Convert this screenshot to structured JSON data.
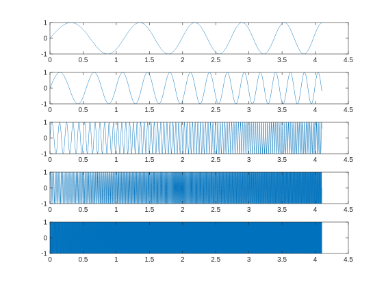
{
  "chart_data": [
    {
      "type": "line",
      "title": "",
      "xlabel": "",
      "ylabel": "",
      "xlim": [
        0,
        4.5
      ],
      "ylim": [
        -1,
        1
      ],
      "xticks": [
        "0",
        "0.5",
        "1",
        "1.5",
        "2",
        "2.5",
        "3",
        "3.5",
        "4",
        "4.5"
      ],
      "yticks": [
        "1",
        "0",
        "-1"
      ],
      "series": [
        {
          "function": "sin",
          "frequency_start_hz": 0.75,
          "frequency_end_hz": 1.8,
          "x_start": 0,
          "x_end": 4.1
        }
      ]
    },
    {
      "type": "line",
      "title": "",
      "xlabel": "",
      "ylabel": "",
      "xlim": [
        0,
        4.5
      ],
      "ylim": [
        -1,
        1
      ],
      "xticks": [
        "0",
        "0.5",
        "1",
        "1.5",
        "2",
        "2.5",
        "3",
        "3.5",
        "4",
        "4.5"
      ],
      "yticks": [
        "1",
        "0",
        "-1"
      ],
      "series": [
        {
          "function": "sin",
          "frequency_start_hz": 1.6,
          "frequency_end_hz": 5.0,
          "x_start": 0,
          "x_end": 4.1
        }
      ]
    },
    {
      "type": "line",
      "title": "",
      "xlabel": "",
      "ylabel": "",
      "xlim": [
        0,
        4.5
      ],
      "ylim": [
        -1,
        1
      ],
      "xticks": [
        "0",
        "0.5",
        "1",
        "1.5",
        "2",
        "2.5",
        "3",
        "3.5",
        "4",
        "4.5"
      ],
      "yticks": [
        "1",
        "0",
        "-1"
      ],
      "series": [
        {
          "function": "sin",
          "frequency_start_hz": 8,
          "frequency_end_hz": 40,
          "x_start": 0,
          "x_end": 4.1
        }
      ]
    },
    {
      "type": "line",
      "title": "",
      "xlabel": "",
      "ylabel": "",
      "xlim": [
        0,
        4.5
      ],
      "ylim": [
        -1,
        1
      ],
      "xticks": [
        "0",
        "0.5",
        "1",
        "1.5",
        "2",
        "2.5",
        "3",
        "3.5",
        "4",
        "4.5"
      ],
      "yticks": [
        "1",
        "0",
        "-1"
      ],
      "series": [
        {
          "function": "sin",
          "frequency_start_hz": 40,
          "frequency_end_hz": 160,
          "x_start": 0,
          "x_end": 4.1
        }
      ]
    },
    {
      "type": "line",
      "title": "",
      "xlabel": "",
      "ylabel": "",
      "xlim": [
        0,
        4.5
      ],
      "ylim": [
        -1,
        1
      ],
      "xticks": [
        "0",
        "0.5",
        "1",
        "1.5",
        "2",
        "2.5",
        "3",
        "3.5",
        "4",
        "4.5"
      ],
      "yticks": [
        "1",
        "0",
        "-1"
      ],
      "series": [
        {
          "function": "sin",
          "frequency_start_hz": 200,
          "frequency_end_hz": 600,
          "x_start": 0,
          "x_end": 4.1
        }
      ]
    }
  ],
  "colors": {
    "line": "#0072BD",
    "axis": "#262626",
    "background": "#ffffff"
  }
}
